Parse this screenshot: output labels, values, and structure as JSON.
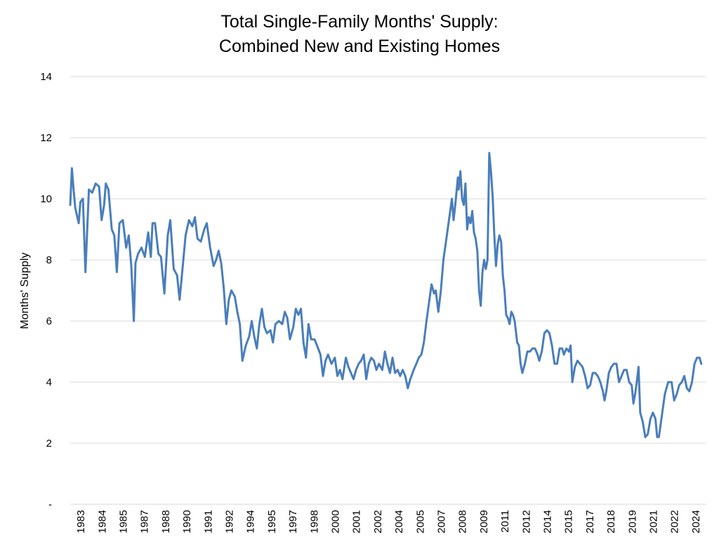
{
  "chart_data": {
    "type": "line",
    "title": "Total Single-Family Months' Supply:",
    "subtitle": "Combined New and Existing Homes",
    "xlabel": "",
    "ylabel": "Months' Supply",
    "ylim": [
      0,
      14
    ],
    "y_ticks": [
      "-",
      "2",
      "4",
      "6",
      "8",
      "10",
      "12",
      "14"
    ],
    "x_tick_labels": [
      "1983",
      "1984",
      "1985",
      "1987",
      "1988",
      "1990",
      "1991",
      "1992",
      "1994",
      "1995",
      "1997",
      "1998",
      "2000",
      "2001",
      "2002",
      "2004",
      "2005",
      "2007",
      "2008",
      "2009",
      "2011",
      "2012",
      "2014",
      "2015",
      "2017",
      "2018",
      "2019",
      "2021",
      "2022",
      "2024"
    ],
    "grid": true,
    "line_color": "#4a7ebb",
    "series": [
      {
        "values": [
          [
            1983.0,
            9.8
          ],
          [
            1983.1,
            11.0
          ],
          [
            1983.2,
            10.3
          ],
          [
            1983.3,
            9.7
          ],
          [
            1983.5,
            9.2
          ],
          [
            1983.6,
            9.9
          ],
          [
            1983.75,
            10.0
          ],
          [
            1983.9,
            7.6
          ],
          [
            1984.1,
            10.3
          ],
          [
            1984.3,
            10.2
          ],
          [
            1984.5,
            10.5
          ],
          [
            1984.7,
            10.4
          ],
          [
            1984.85,
            9.3
          ],
          [
            1985.0,
            9.8
          ],
          [
            1985.1,
            10.5
          ],
          [
            1985.25,
            10.3
          ],
          [
            1985.45,
            9.0
          ],
          [
            1985.6,
            8.8
          ],
          [
            1985.75,
            7.6
          ],
          [
            1985.9,
            9.2
          ],
          [
            1986.1,
            9.3
          ],
          [
            1986.3,
            8.4
          ],
          [
            1986.45,
            8.8
          ],
          [
            1986.6,
            7.8
          ],
          [
            1986.75,
            6.0
          ],
          [
            1986.85,
            7.9
          ],
          [
            1987.0,
            8.2
          ],
          [
            1987.2,
            8.4
          ],
          [
            1987.4,
            8.1
          ],
          [
            1987.6,
            8.9
          ],
          [
            1987.75,
            8.1
          ],
          [
            1987.85,
            9.2
          ],
          [
            1988.0,
            9.2
          ],
          [
            1988.2,
            8.2
          ],
          [
            1988.35,
            8.1
          ],
          [
            1988.55,
            6.9
          ],
          [
            1988.75,
            8.8
          ],
          [
            1988.9,
            9.3
          ],
          [
            1989.1,
            7.7
          ],
          [
            1989.3,
            7.5
          ],
          [
            1989.45,
            6.7
          ],
          [
            1989.6,
            7.6
          ],
          [
            1989.8,
            8.8
          ],
          [
            1990.0,
            9.3
          ],
          [
            1990.2,
            9.1
          ],
          [
            1990.35,
            9.4
          ],
          [
            1990.5,
            8.7
          ],
          [
            1990.7,
            8.6
          ],
          [
            1990.9,
            9.0
          ],
          [
            1991.05,
            9.2
          ],
          [
            1991.25,
            8.4
          ],
          [
            1991.45,
            7.8
          ],
          [
            1991.6,
            8.0
          ],
          [
            1991.75,
            8.3
          ],
          [
            1991.9,
            7.9
          ],
          [
            1992.05,
            7.1
          ],
          [
            1992.2,
            5.9
          ],
          [
            1992.35,
            6.7
          ],
          [
            1992.5,
            7.0
          ],
          [
            1992.7,
            6.8
          ],
          [
            1992.85,
            6.3
          ],
          [
            1993.0,
            5.9
          ],
          [
            1993.15,
            4.7
          ],
          [
            1993.35,
            5.2
          ],
          [
            1993.55,
            5.5
          ],
          [
            1993.7,
            6.0
          ],
          [
            1993.85,
            5.5
          ],
          [
            1994.0,
            5.1
          ],
          [
            1994.15,
            5.9
          ],
          [
            1994.3,
            6.4
          ],
          [
            1994.45,
            5.8
          ],
          [
            1994.6,
            5.6
          ],
          [
            1994.8,
            5.7
          ],
          [
            1994.95,
            5.3
          ],
          [
            1995.1,
            5.9
          ],
          [
            1995.3,
            6.0
          ],
          [
            1995.5,
            5.9
          ],
          [
            1995.65,
            6.3
          ],
          [
            1995.8,
            6.1
          ],
          [
            1995.95,
            5.4
          ],
          [
            1996.15,
            5.8
          ],
          [
            1996.3,
            6.4
          ],
          [
            1996.45,
            6.2
          ],
          [
            1996.6,
            6.4
          ],
          [
            1996.75,
            5.3
          ],
          [
            1996.9,
            4.8
          ],
          [
            1997.05,
            5.9
          ],
          [
            1997.2,
            5.4
          ],
          [
            1997.4,
            5.4
          ],
          [
            1997.55,
            5.2
          ],
          [
            1997.75,
            4.9
          ],
          [
            1997.9,
            4.2
          ],
          [
            1998.05,
            4.7
          ],
          [
            1998.2,
            4.9
          ],
          [
            1998.4,
            4.6
          ],
          [
            1998.6,
            4.8
          ],
          [
            1998.75,
            4.2
          ],
          [
            1998.9,
            4.4
          ],
          [
            1999.05,
            4.1
          ],
          [
            1999.25,
            4.8
          ],
          [
            1999.4,
            4.5
          ],
          [
            1999.55,
            4.3
          ],
          [
            1999.7,
            4.1
          ],
          [
            1999.85,
            4.4
          ],
          [
            2000.0,
            4.6
          ],
          [
            2000.15,
            4.7
          ],
          [
            2000.3,
            4.9
          ],
          [
            2000.45,
            4.1
          ],
          [
            2000.6,
            4.6
          ],
          [
            2000.75,
            4.8
          ],
          [
            2000.9,
            4.7
          ],
          [
            2001.05,
            4.4
          ],
          [
            2001.2,
            4.6
          ],
          [
            2001.4,
            4.4
          ],
          [
            2001.55,
            5.0
          ],
          [
            2001.7,
            4.6
          ],
          [
            2001.85,
            4.3
          ],
          [
            2002.0,
            4.8
          ],
          [
            2002.15,
            4.3
          ],
          [
            2002.3,
            4.4
          ],
          [
            2002.45,
            4.2
          ],
          [
            2002.6,
            4.4
          ],
          [
            2002.75,
            4.2
          ],
          [
            2002.9,
            3.8
          ],
          [
            2003.05,
            4.1
          ],
          [
            2003.25,
            4.4
          ],
          [
            2003.4,
            4.6
          ],
          [
            2003.55,
            4.8
          ],
          [
            2003.7,
            4.9
          ],
          [
            2003.85,
            5.3
          ],
          [
            2004.0,
            6.0
          ],
          [
            2004.15,
            6.6
          ],
          [
            2004.3,
            7.2
          ],
          [
            2004.45,
            6.9
          ],
          [
            2004.55,
            7.0
          ],
          [
            2004.7,
            6.3
          ],
          [
            2004.85,
            7.0
          ],
          [
            2005.0,
            8.0
          ],
          [
            2005.2,
            8.8
          ],
          [
            2005.4,
            9.6
          ],
          [
            2005.5,
            10.0
          ],
          [
            2005.6,
            9.3
          ],
          [
            2005.7,
            9.8
          ],
          [
            2005.85,
            10.7
          ],
          [
            2005.9,
            10.3
          ],
          [
            2006.0,
            10.9
          ],
          [
            2006.1,
            10.0
          ],
          [
            2006.2,
            9.8
          ],
          [
            2006.3,
            10.5
          ],
          [
            2006.4,
            9.0
          ],
          [
            2006.5,
            9.4
          ],
          [
            2006.6,
            9.2
          ],
          [
            2006.7,
            9.6
          ],
          [
            2006.8,
            8.9
          ],
          [
            2006.9,
            8.7
          ],
          [
            2007.0,
            8.3
          ],
          [
            2007.1,
            7.0
          ],
          [
            2007.2,
            6.5
          ],
          [
            2007.3,
            7.6
          ],
          [
            2007.4,
            8.0
          ],
          [
            2007.5,
            7.7
          ],
          [
            2007.6,
            8.0
          ],
          [
            2007.7,
            11.5
          ],
          [
            2007.8,
            10.9
          ],
          [
            2007.9,
            10.1
          ],
          [
            2008.0,
            8.8
          ],
          [
            2008.1,
            7.8
          ],
          [
            2008.2,
            8.5
          ],
          [
            2008.3,
            8.8
          ],
          [
            2008.4,
            8.6
          ],
          [
            2008.5,
            7.5
          ],
          [
            2008.6,
            7.0
          ],
          [
            2008.7,
            6.2
          ],
          [
            2008.8,
            6.1
          ],
          [
            2008.9,
            5.9
          ],
          [
            2009.0,
            6.3
          ],
          [
            2009.1,
            6.2
          ],
          [
            2009.2,
            6.0
          ],
          [
            2009.35,
            5.3
          ],
          [
            2009.45,
            5.2
          ],
          [
            2009.55,
            4.6
          ],
          [
            2009.65,
            4.3
          ],
          [
            2009.8,
            4.6
          ],
          [
            2009.95,
            5.0
          ],
          [
            2010.1,
            5.0
          ],
          [
            2010.25,
            5.1
          ],
          [
            2010.4,
            5.1
          ],
          [
            2010.55,
            4.9
          ],
          [
            2010.65,
            4.7
          ],
          [
            2010.8,
            5.0
          ],
          [
            2010.95,
            5.6
          ],
          [
            2011.1,
            5.7
          ],
          [
            2011.25,
            5.6
          ],
          [
            2011.4,
            5.2
          ],
          [
            2011.55,
            4.6
          ],
          [
            2011.7,
            4.6
          ],
          [
            2011.85,
            5.1
          ],
          [
            2012.0,
            5.1
          ],
          [
            2012.1,
            4.9
          ],
          [
            2012.25,
            5.1
          ],
          [
            2012.4,
            5.0
          ],
          [
            2012.5,
            5.2
          ],
          [
            2012.6,
            4.0
          ],
          [
            2012.75,
            4.5
          ],
          [
            2012.9,
            4.7
          ],
          [
            2013.05,
            4.6
          ],
          [
            2013.2,
            4.5
          ],
          [
            2013.35,
            4.2
          ],
          [
            2013.5,
            3.8
          ],
          [
            2013.65,
            3.9
          ],
          [
            2013.8,
            4.3
          ],
          [
            2013.95,
            4.3
          ],
          [
            2014.1,
            4.2
          ],
          [
            2014.25,
            4.0
          ],
          [
            2014.4,
            3.7
          ],
          [
            2014.5,
            3.4
          ],
          [
            2014.6,
            3.7
          ],
          [
            2014.75,
            4.3
          ],
          [
            2014.9,
            4.5
          ],
          [
            2015.05,
            4.6
          ],
          [
            2015.2,
            4.6
          ],
          [
            2015.35,
            4.0
          ],
          [
            2015.5,
            4.2
          ],
          [
            2015.65,
            4.4
          ],
          [
            2015.8,
            4.4
          ],
          [
            2015.95,
            4.0
          ],
          [
            2016.1,
            3.9
          ],
          [
            2016.2,
            3.3
          ],
          [
            2016.3,
            3.6
          ],
          [
            2016.4,
            4.0
          ],
          [
            2016.5,
            4.5
          ],
          [
            2016.6,
            3.0
          ],
          [
            2016.75,
            2.7
          ],
          [
            2016.9,
            2.2
          ],
          [
            2017.05,
            2.3
          ],
          [
            2017.2,
            2.8
          ],
          [
            2017.35,
            3.0
          ],
          [
            2017.5,
            2.8
          ],
          [
            2017.6,
            2.2
          ],
          [
            2017.7,
            2.2
          ],
          [
            2017.85,
            2.8
          ],
          [
            2018.05,
            3.6
          ],
          [
            2018.25,
            4.0
          ],
          [
            2018.45,
            4.0
          ],
          [
            2018.6,
            3.4
          ],
          [
            2018.75,
            3.6
          ],
          [
            2018.9,
            3.9
          ],
          [
            2019.05,
            4.0
          ],
          [
            2019.2,
            4.2
          ],
          [
            2019.35,
            3.8
          ],
          [
            2019.5,
            3.7
          ],
          [
            2019.65,
            4.0
          ],
          [
            2019.8,
            4.6
          ],
          [
            2019.95,
            4.8
          ],
          [
            2020.1,
            4.8
          ],
          [
            2020.2,
            4.6
          ]
        ]
      }
    ]
  }
}
